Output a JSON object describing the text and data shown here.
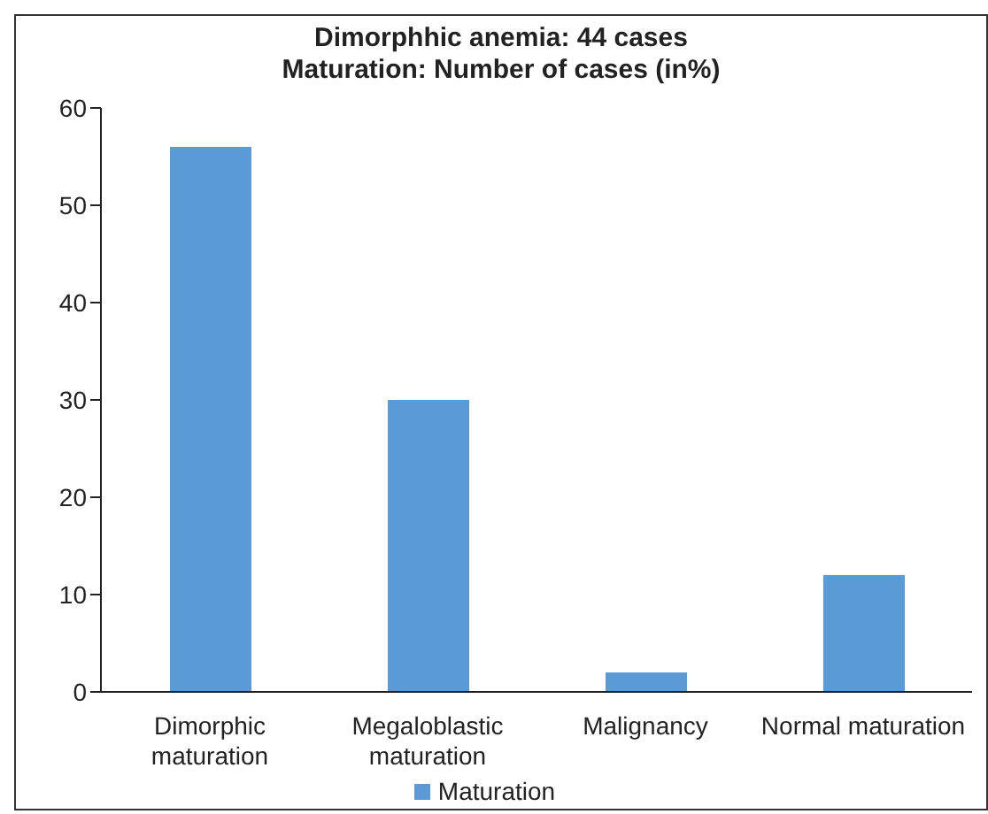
{
  "chart_data": {
    "type": "bar",
    "title": "Dimorphhic anemia: 44 cases",
    "subtitle": "Maturation: Number of cases (in%)",
    "categories": [
      "Dimorphic maturation",
      "Megaloblastic maturation",
      "Malignancy",
      "Normal maturation"
    ],
    "series": [
      {
        "name": "Maturation",
        "color": "#5b9bd5",
        "values": [
          56,
          30,
          2,
          12
        ]
      }
    ],
    "ylim": [
      0,
      60
    ],
    "yticks": [
      0,
      10,
      20,
      30,
      40,
      50,
      60
    ],
    "grid": false,
    "legend": "bottom"
  }
}
